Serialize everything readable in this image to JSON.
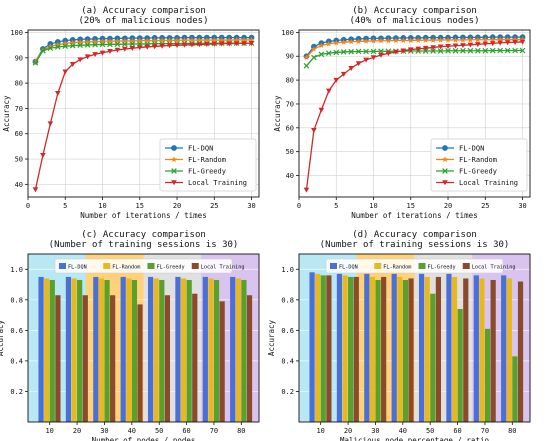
{
  "chart_data": [
    {
      "type": "line",
      "title": [
        "(a) Accuracy comparison",
        "(20% of malicious nodes)"
      ],
      "xlabel": "Number of iterations / times",
      "ylabel": "Accuracy",
      "xlim": [
        0,
        31
      ],
      "ylim": [
        35,
        101
      ],
      "xticks": [
        0,
        5,
        10,
        15,
        20,
        25,
        30
      ],
      "yticks": [
        40,
        50,
        60,
        70,
        80,
        90,
        100
      ],
      "grid": true,
      "legend_position": "lower-right",
      "x": [
        1,
        2,
        3,
        4,
        5,
        6,
        7,
        8,
        9,
        10,
        11,
        12,
        13,
        14,
        15,
        16,
        17,
        18,
        19,
        20,
        21,
        22,
        23,
        24,
        25,
        26,
        27,
        28,
        29,
        30
      ],
      "series": [
        {
          "name": "FL-DQN",
          "color": "#1f77b4",
          "marker": "circle",
          "values": [
            88.5,
            93.5,
            95.5,
            96.3,
            96.8,
            97.1,
            97.3,
            97.4,
            97.5,
            97.6,
            97.6,
            97.7,
            97.7,
            97.8,
            97.8,
            97.8,
            97.9,
            97.9,
            97.9,
            97.9,
            98.0,
            98.0,
            98.0,
            98.0,
            98.0,
            98.0,
            98.0,
            98.0,
            98.0,
            98.0
          ]
        },
        {
          "name": "FL-Random",
          "color": "#ff7f0e",
          "marker": "star",
          "values": [
            88.5,
            93.0,
            94.5,
            95.2,
            95.7,
            96.0,
            96.2,
            96.3,
            96.4,
            96.5,
            96.6,
            96.6,
            96.7,
            96.7,
            96.8,
            96.8,
            96.8,
            96.9,
            96.9,
            96.9,
            97.0,
            97.0,
            97.0,
            97.0,
            97.0,
            97.0,
            97.0,
            97.1,
            97.1,
            97.1
          ]
        },
        {
          "name": "FL-Greedy",
          "color": "#2ca02c",
          "marker": "x",
          "values": [
            88.0,
            92.8,
            93.8,
            94.3,
            94.6,
            94.8,
            95.0,
            95.1,
            95.2,
            95.3,
            95.3,
            95.4,
            95.4,
            95.5,
            95.5,
            95.5,
            95.6,
            95.6,
            95.6,
            95.6,
            95.7,
            95.7,
            95.7,
            95.7,
            95.7,
            95.8,
            95.8,
            95.8,
            95.8,
            95.8
          ]
        },
        {
          "name": "Local Training",
          "color": "#d62728",
          "marker": "triangle-down",
          "values": [
            38.0,
            51.5,
            64.0,
            76.0,
            84.5,
            87.5,
            89.3,
            90.5,
            91.4,
            92.0,
            92.6,
            93.1,
            93.5,
            93.8,
            94.1,
            94.3,
            94.5,
            94.7,
            94.9,
            95.0,
            95.1,
            95.2,
            95.3,
            95.4,
            95.5,
            95.6,
            95.6,
            95.7,
            95.7,
            95.8
          ]
        }
      ]
    },
    {
      "type": "line",
      "title": [
        "(b) Accuracy comparison",
        "(40% of malicious nodes)"
      ],
      "xlabel": "Number of iterations / times",
      "ylabel": "Accuracy",
      "xlim": [
        0,
        31
      ],
      "ylim": [
        31,
        101
      ],
      "xticks": [
        0,
        5,
        10,
        15,
        20,
        25,
        30
      ],
      "yticks": [
        40,
        50,
        60,
        70,
        80,
        90,
        100
      ],
      "grid": true,
      "legend_position": "lower-right",
      "x": [
        1,
        2,
        3,
        4,
        5,
        6,
        7,
        8,
        9,
        10,
        11,
        12,
        13,
        14,
        15,
        16,
        17,
        18,
        19,
        20,
        21,
        22,
        23,
        24,
        25,
        26,
        27,
        28,
        29,
        30
      ],
      "series": [
        {
          "name": "FL-DQN",
          "color": "#1f77b4",
          "marker": "circle",
          "values": [
            90.0,
            94.0,
            95.5,
            96.2,
            96.6,
            96.9,
            97.1,
            97.3,
            97.4,
            97.5,
            97.5,
            97.6,
            97.6,
            97.7,
            97.7,
            97.7,
            97.8,
            97.8,
            97.8,
            97.8,
            97.9,
            97.9,
            97.9,
            97.9,
            97.9,
            98.0,
            98.0,
            98.0,
            98.0,
            98.0
          ]
        },
        {
          "name": "FL-Random",
          "color": "#ff7f0e",
          "marker": "star",
          "values": [
            89.5,
            93.0,
            94.5,
            95.2,
            95.6,
            95.9,
            96.1,
            96.2,
            96.3,
            96.4,
            96.5,
            96.5,
            96.6,
            96.6,
            96.6,
            96.7,
            96.7,
            96.7,
            96.8,
            96.8,
            96.8,
            96.8,
            96.9,
            96.9,
            96.9,
            96.9,
            97.0,
            97.0,
            97.0,
            97.0
          ]
        },
        {
          "name": "FL-Greedy",
          "color": "#2ca02c",
          "marker": "x",
          "values": [
            86.0,
            89.5,
            90.8,
            91.3,
            91.6,
            91.8,
            91.9,
            92.0,
            92.0,
            92.0,
            92.1,
            92.1,
            92.1,
            92.1,
            92.2,
            92.2,
            92.2,
            92.2,
            92.2,
            92.3,
            92.3,
            92.3,
            92.3,
            92.3,
            92.3,
            92.4,
            92.4,
            92.4,
            92.4,
            92.4
          ]
        },
        {
          "name": "Local Training",
          "color": "#d62728",
          "marker": "triangle-down",
          "values": [
            34.0,
            59.0,
            67.5,
            75.5,
            80.0,
            82.5,
            85.0,
            87.0,
            88.5,
            89.5,
            90.5,
            91.2,
            91.8,
            92.3,
            92.8,
            93.1,
            93.4,
            93.7,
            94.0,
            94.2,
            94.4,
            94.6,
            94.8,
            95.0,
            95.2,
            95.4,
            95.6,
            95.8,
            95.9,
            96.0
          ]
        }
      ]
    },
    {
      "type": "bar",
      "title": [
        "(c) Accuracy comparison",
        "(Number of training sessions is 30)"
      ],
      "xlabel": "Number of nodes / nodes",
      "ylabel": "Accuracy",
      "ylim": [
        0,
        1.1
      ],
      "yticks": [
        0.2,
        0.4,
        0.6,
        0.8,
        1.0
      ],
      "grid": true,
      "legend_position": "top",
      "categories": [
        "10",
        "20",
        "30",
        "40",
        "50",
        "60",
        "70",
        "80"
      ],
      "series": [
        {
          "name": "FL-DQN",
          "color": "#4a6fd6",
          "values": [
            0.95,
            0.95,
            0.95,
            0.95,
            0.95,
            0.95,
            0.95,
            0.95
          ]
        },
        {
          "name": "FL-Random",
          "color": "#e8b820",
          "values": [
            0.94,
            0.94,
            0.94,
            0.94,
            0.94,
            0.94,
            0.94,
            0.94
          ]
        },
        {
          "name": "FL-Greedy",
          "color": "#5aa02c",
          "values": [
            0.93,
            0.93,
            0.93,
            0.93,
            0.93,
            0.93,
            0.93,
            0.93
          ]
        },
        {
          "name": "Local Training",
          "color": "#8b4a2b",
          "values": [
            0.83,
            0.83,
            0.83,
            0.77,
            0.83,
            0.84,
            0.79,
            0.83
          ]
        }
      ],
      "background_colors": [
        "#b8e8f4",
        "#ffd27a",
        "#e0e0e0",
        "#d9c4f0"
      ]
    },
    {
      "type": "bar",
      "title": [
        "(d) Accuracy comparison",
        "(Number of training sessions is 30)"
      ],
      "xlabel": "Malicious node percentage / ratio",
      "ylabel": "Accuracy",
      "ylim": [
        0,
        1.1
      ],
      "yticks": [
        0.2,
        0.4,
        0.6,
        0.8,
        1.0
      ],
      "grid": true,
      "legend_position": "top",
      "categories": [
        "10",
        "20",
        "30",
        "40",
        "50",
        "60",
        "70",
        "80"
      ],
      "series": [
        {
          "name": "FL-DQN",
          "color": "#4a6fd6",
          "values": [
            0.98,
            0.97,
            0.97,
            0.97,
            0.97,
            0.97,
            0.96,
            0.96
          ]
        },
        {
          "name": "FL-Random",
          "color": "#e8b820",
          "values": [
            0.97,
            0.96,
            0.95,
            0.95,
            0.95,
            0.95,
            0.94,
            0.94
          ]
        },
        {
          "name": "FL-Greedy",
          "color": "#5aa02c",
          "values": [
            0.96,
            0.95,
            0.93,
            0.93,
            0.84,
            0.74,
            0.61,
            0.43
          ]
        },
        {
          "name": "Local Training",
          "color": "#8b4a2b",
          "values": [
            0.96,
            0.95,
            0.95,
            0.94,
            0.95,
            0.94,
            0.93,
            0.92
          ]
        }
      ],
      "background_colors": [
        "#b8e8f4",
        "#ffd27a",
        "#e0e0e0",
        "#d9c4f0"
      ]
    }
  ]
}
